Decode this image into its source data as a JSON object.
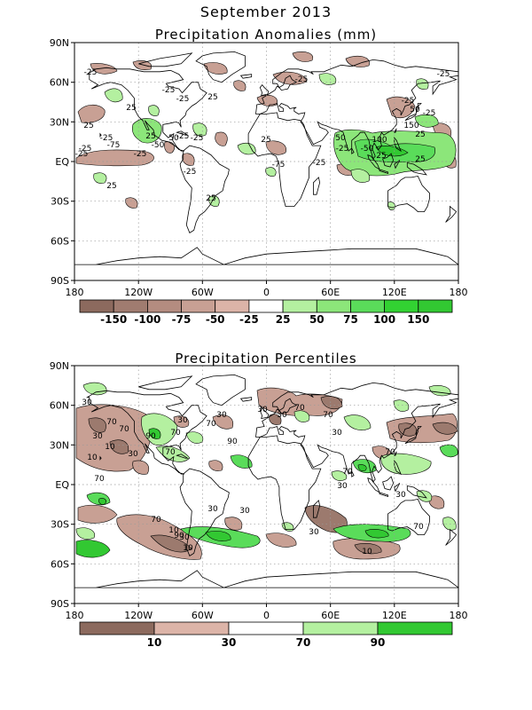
{
  "header": {
    "month_title": "September 2013",
    "panel1_title": "Precipitation Anomalies (mm)",
    "panel2_title": "Precipitation Percentiles"
  },
  "axes": {
    "lat_labels": [
      "90N",
      "60N",
      "30N",
      "EQ",
      "30S",
      "60S",
      "90S"
    ],
    "lon_labels": [
      "180",
      "120W",
      "60W",
      "0",
      "60E",
      "120E",
      "180"
    ]
  },
  "anomaly_legend": {
    "labels": [
      "-150",
      "-100",
      "-75",
      "-50",
      "-25",
      "25",
      "50",
      "75",
      "100",
      "150"
    ],
    "colors": [
      "#8c6a5e",
      "#a07c70",
      "#b48c80",
      "#c8a094",
      "#dcb4a8",
      "#ffffff",
      "#b4f0a0",
      "#8ce67a",
      "#5adc5a",
      "#32d232",
      "#32c832"
    ]
  },
  "percentile_legend": {
    "labels": [
      "10",
      "30",
      "70",
      "90"
    ],
    "colors": [
      "#8c6a5e",
      "#dcb4a8",
      "#ffffff",
      "#b4f0a0",
      "#32c832"
    ]
  },
  "map_colors": {
    "dry_strong": "#9c7a6e",
    "dry": "#c8a094",
    "dry_light": "#dcb4a8",
    "wet_light": "#b4f0a0",
    "wet": "#5adc5a",
    "wet_strong": "#32c832",
    "coast": "#000000",
    "grid": "#999999"
  },
  "panel1_contour_labels": [
    "-25",
    "25",
    "-25",
    "25",
    "-25",
    "-25",
    "-25",
    "-75",
    "-25",
    "-50",
    "50",
    "25",
    "-25",
    "-25",
    "25",
    "-25",
    "25",
    "25",
    "-25",
    "-25",
    "25",
    "-75",
    "-25",
    "50",
    "-50",
    "100",
    "150",
    "25",
    "-25",
    "-25",
    "50",
    "-25",
    "25",
    "25",
    "-25"
  ],
  "panel2_contour_labels": [
    "30",
    "70",
    "30",
    "70",
    "10",
    "30",
    "90",
    "70",
    "30",
    "70",
    "30",
    "70",
    "10",
    "90",
    "30",
    "30",
    "70",
    "70",
    "30",
    "70",
    "30",
    "30",
    "30",
    "10",
    "70",
    "10",
    "90",
    "70",
    "30",
    "10",
    "30",
    "70",
    "30",
    "70"
  ]
}
